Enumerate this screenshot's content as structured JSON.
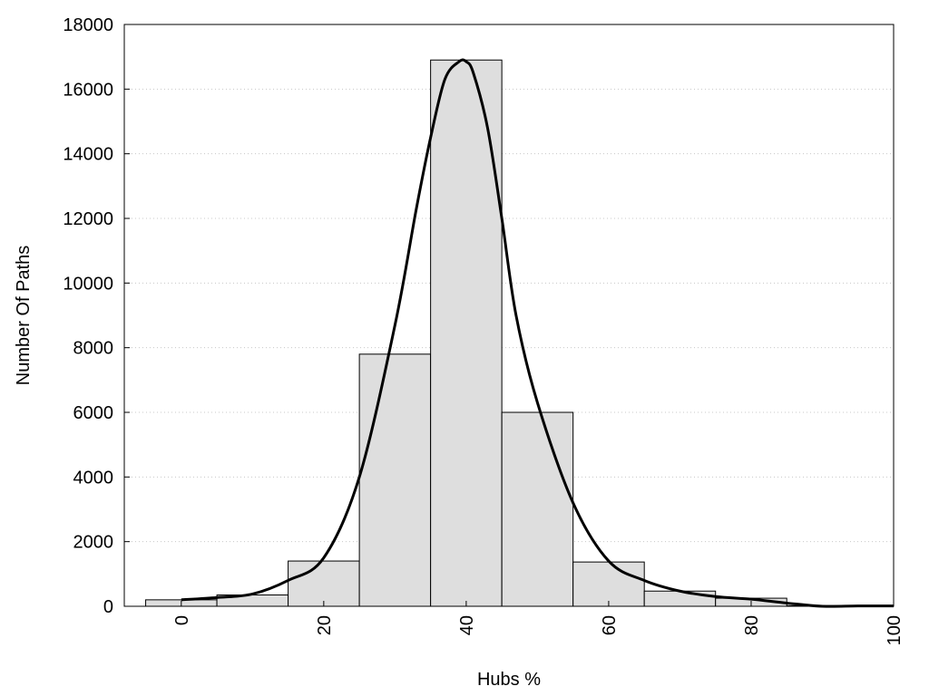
{
  "chart_data": {
    "type": "bar",
    "title": "",
    "xlabel": "Hubs %",
    "ylabel": "Number Of Paths",
    "xlim": [
      -8,
      100
    ],
    "ylim": [
      0,
      18000
    ],
    "x_ticks": [
      0,
      20,
      40,
      60,
      80,
      100
    ],
    "y_ticks": [
      0,
      2000,
      4000,
      6000,
      8000,
      10000,
      12000,
      14000,
      16000,
      18000
    ],
    "grid": "horizontal dotted",
    "legend": "none",
    "bar_color": "#dedede",
    "bar_edge_color": "#000000",
    "curve_color": "#000000",
    "bins": [
      {
        "x0": -5,
        "x1": 5,
        "value": 200
      },
      {
        "x0": 5,
        "x1": 15,
        "value": 350
      },
      {
        "x0": 15,
        "x1": 25,
        "value": 1400
      },
      {
        "x0": 25,
        "x1": 35,
        "value": 7800
      },
      {
        "x0": 35,
        "x1": 45,
        "value": 16900
      },
      {
        "x0": 45,
        "x1": 55,
        "value": 6000
      },
      {
        "x0": 55,
        "x1": 65,
        "value": 1370
      },
      {
        "x0": 65,
        "x1": 75,
        "value": 470
      },
      {
        "x0": 75,
        "x1": 85,
        "value": 250
      },
      {
        "x0": 85,
        "x1": 95,
        "value": 20
      },
      {
        "x0": 95,
        "x1": 100,
        "value": 20
      }
    ],
    "density_curve": {
      "x": [
        0,
        5,
        10,
        15,
        20,
        25,
        30,
        33,
        35,
        37,
        39,
        40,
        41,
        43,
        45,
        47,
        50,
        55,
        60,
        65,
        70,
        75,
        80,
        85,
        90,
        95,
        100
      ],
      "y": [
        200,
        270,
        380,
        800,
        1500,
        4000,
        8700,
        12300,
        14500,
        16300,
        16850,
        16850,
        16500,
        14800,
        12000,
        9000,
        6300,
        3200,
        1400,
        800,
        470,
        300,
        220,
        100,
        0,
        10,
        10
      ]
    }
  }
}
